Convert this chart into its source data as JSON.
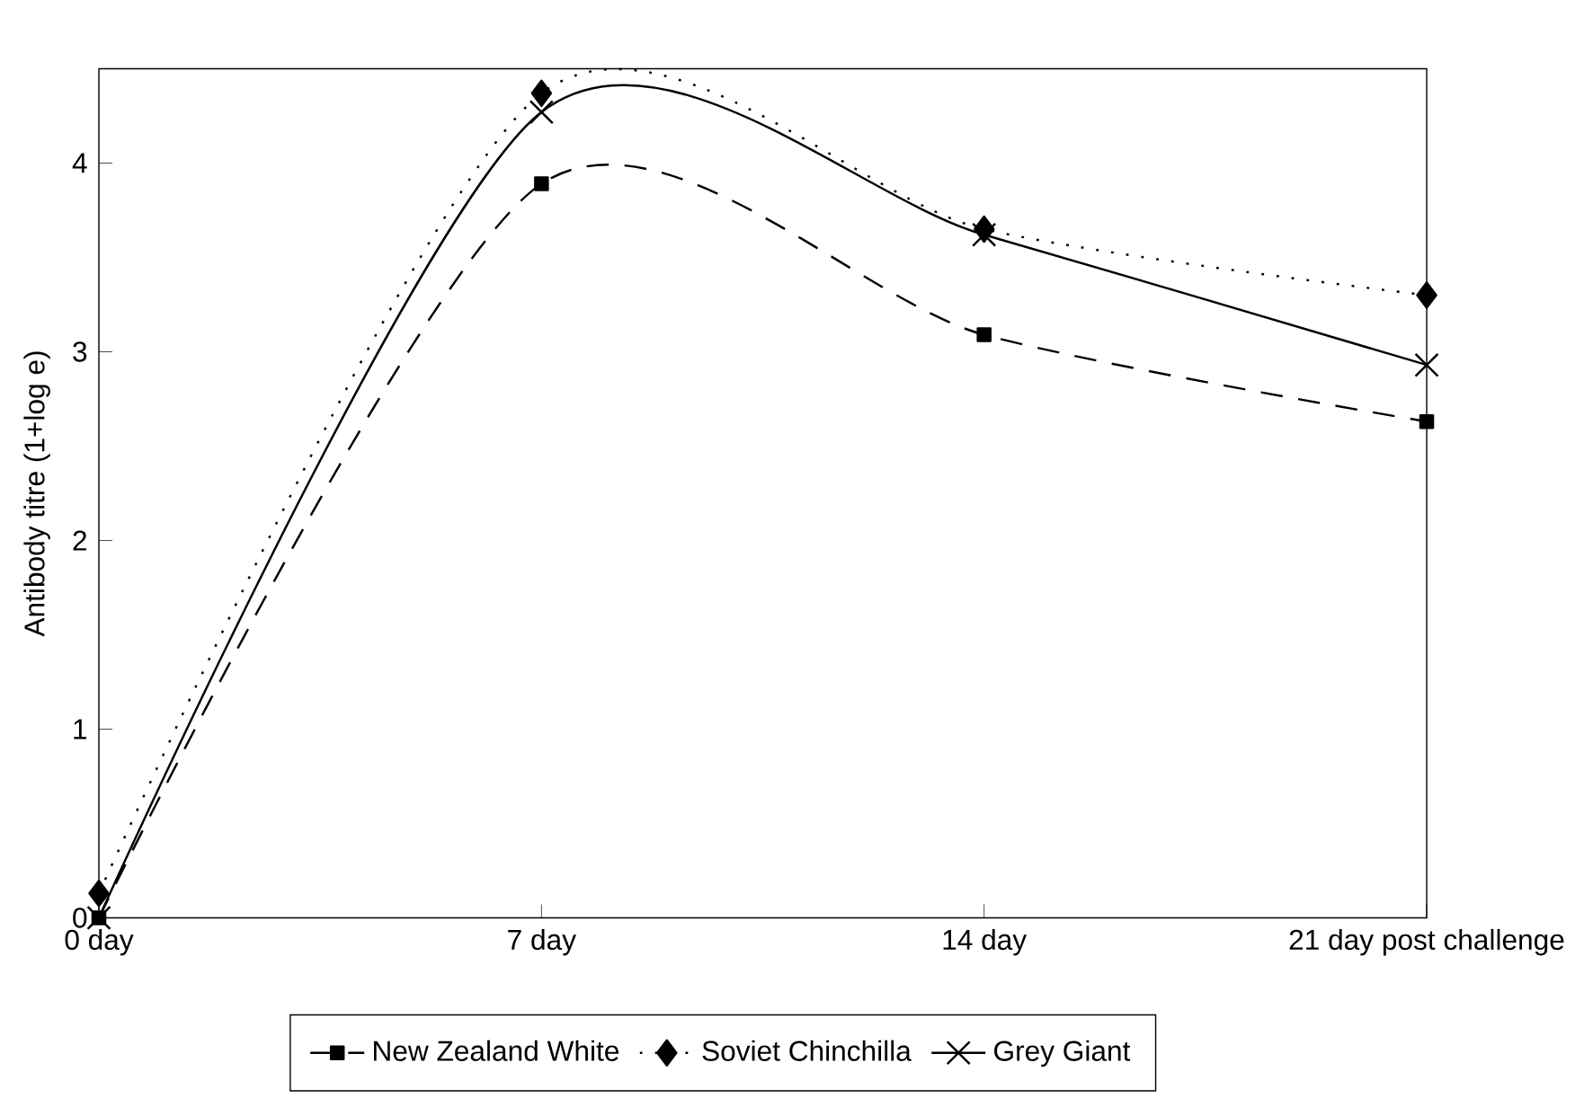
{
  "chart_data": {
    "type": "line",
    "ylabel": "Antibody titre (1+log e)",
    "categories": [
      "0 day",
      "7 day",
      "14 day",
      "21 day post challenge"
    ],
    "series": [
      {
        "name": "New Zealand White",
        "color": "#000000",
        "values": [
          0.0,
          3.89,
          3.09,
          2.63
        ],
        "marker": "square",
        "line_style": "dashed"
      },
      {
        "name": "Soviet Chinchilla",
        "color": "#000000",
        "values": [
          0.13,
          4.37,
          3.65,
          3.3
        ],
        "marker": "diamond",
        "line_style": "dotted"
      },
      {
        "name": "Grey Giant",
        "color": "#000000",
        "values": [
          0.0,
          4.27,
          3.62,
          2.93
        ],
        "marker": "cross",
        "line_style": "solid"
      }
    ],
    "ylim": [
      0,
      4.5
    ],
    "yticks": [
      0,
      1,
      2,
      3,
      4
    ],
    "grid": false,
    "legend": "bottom"
  }
}
